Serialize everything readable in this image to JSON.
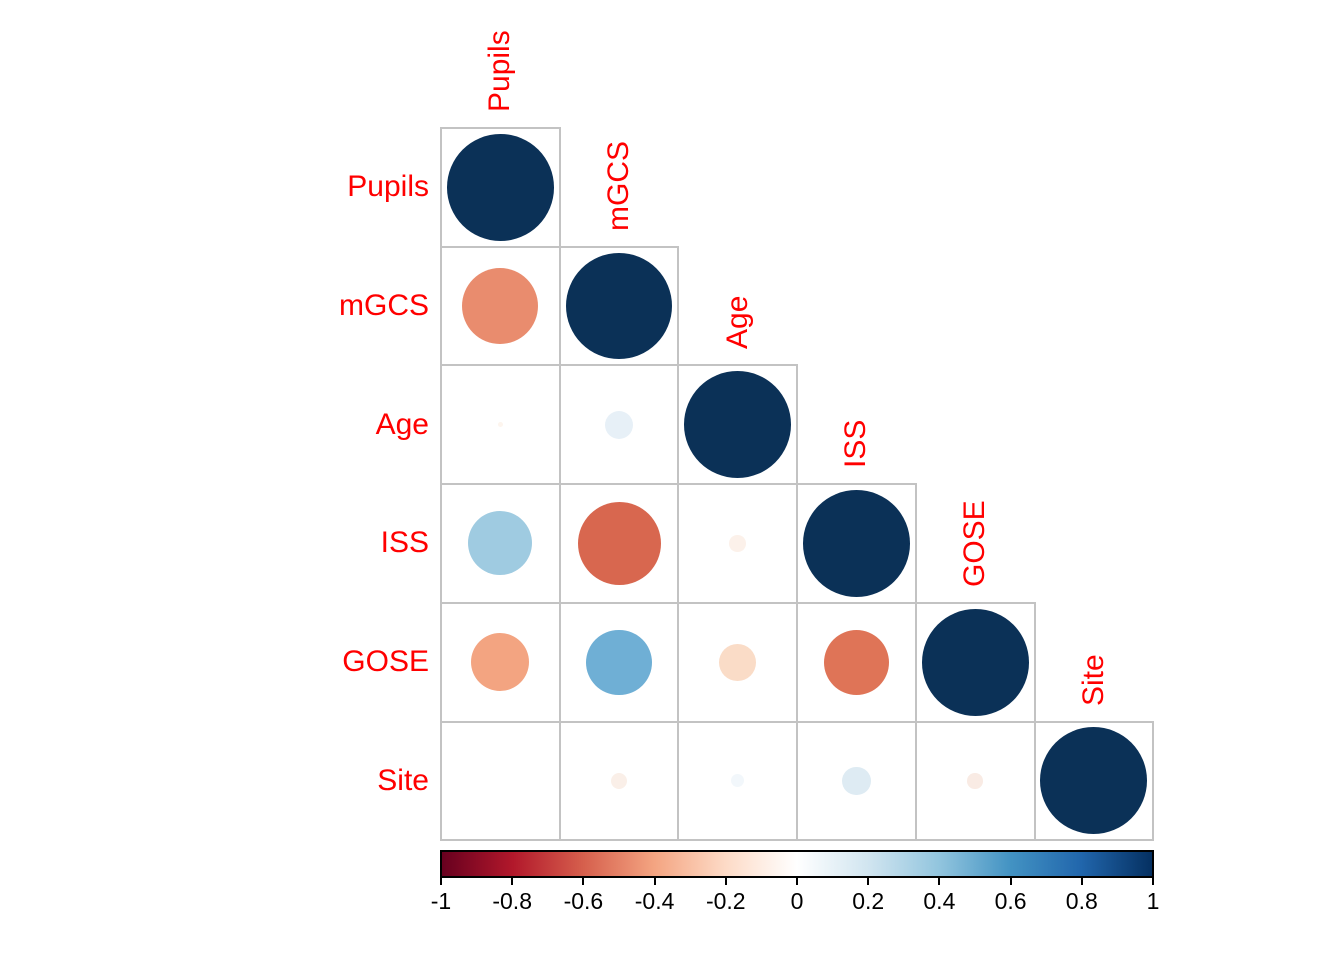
{
  "chart_data": {
    "type": "heatmap",
    "subtype": "correlation-matrix-circle-plot",
    "title": "",
    "matrix_shape": "lower-triangle",
    "variables": [
      "Pupils",
      "mGCS",
      "Age",
      "ISS",
      "GOSE",
      "Site"
    ],
    "correlations": [
      {
        "row": "Pupils",
        "col": "Pupils",
        "value": 1.0,
        "color": "#0B3157",
        "size_ratio": 0.9
      },
      {
        "row": "mGCS",
        "col": "Pupils",
        "value": -0.5,
        "color": "#E98C6E",
        "size_ratio": 0.64
      },
      {
        "row": "mGCS",
        "col": "mGCS",
        "value": 1.0,
        "color": "#0B3157",
        "size_ratio": 0.9
      },
      {
        "row": "Age",
        "col": "Pupils",
        "value": -0.01,
        "color": "#FDF5EE",
        "size_ratio": 0.04
      },
      {
        "row": "Age",
        "col": "mGCS",
        "value": 0.1,
        "color": "#E7F0F7",
        "size_ratio": 0.24
      },
      {
        "row": "Age",
        "col": "Age",
        "value": 1.0,
        "color": "#0B3157",
        "size_ratio": 0.9
      },
      {
        "row": "ISS",
        "col": "Pupils",
        "value": 0.35,
        "color": "#9FCBE1",
        "size_ratio": 0.54
      },
      {
        "row": "ISS",
        "col": "mGCS",
        "value": -0.6,
        "color": "#D8674F",
        "size_ratio": 0.7
      },
      {
        "row": "ISS",
        "col": "Age",
        "value": -0.02,
        "color": "#FCF1EA",
        "size_ratio": 0.14
      },
      {
        "row": "ISS",
        "col": "ISS",
        "value": 1.0,
        "color": "#0B3157",
        "size_ratio": 0.9
      },
      {
        "row": "GOSE",
        "col": "Pupils",
        "value": -0.35,
        "color": "#F3A481",
        "size_ratio": 0.49
      },
      {
        "row": "GOSE",
        "col": "mGCS",
        "value": 0.45,
        "color": "#6FAFD5",
        "size_ratio": 0.55
      },
      {
        "row": "GOSE",
        "col": "Age",
        "value": -0.15,
        "color": "#FADCC7",
        "size_ratio": 0.31
      },
      {
        "row": "GOSE",
        "col": "ISS",
        "value": -0.5,
        "color": "#DF7457",
        "size_ratio": 0.55
      },
      {
        "row": "GOSE",
        "col": "GOSE",
        "value": 1.0,
        "color": "#0B3157",
        "size_ratio": 0.9
      },
      {
        "row": "Site",
        "col": "Pupils",
        "value": 0.0,
        "color": "#FFFFFF",
        "size_ratio": 0.0
      },
      {
        "row": "Site",
        "col": "mGCS",
        "value": -0.03,
        "color": "#FAEFE8",
        "size_ratio": 0.14
      },
      {
        "row": "Site",
        "col": "Age",
        "value": 0.02,
        "color": "#F2F7FB",
        "size_ratio": 0.11
      },
      {
        "row": "Site",
        "col": "ISS",
        "value": 0.1,
        "color": "#DEEBF3",
        "size_ratio": 0.24
      },
      {
        "row": "Site",
        "col": "GOSE",
        "value": -0.03,
        "color": "#F9EBE4",
        "size_ratio": 0.13
      },
      {
        "row": "Site",
        "col": "Site",
        "value": 1.0,
        "color": "#0B3157",
        "size_ratio": 0.9
      }
    ],
    "legend": {
      "position": "bottom",
      "range": [
        -1,
        1
      ],
      "tick_labels": [
        "-1",
        "-0.8",
        "-0.6",
        "-0.4",
        "-0.2",
        "0",
        "0.2",
        "0.4",
        "0.6",
        "0.8",
        "1"
      ],
      "gradient": [
        {
          "pos": 0.0,
          "color": "#67001F"
        },
        {
          "pos": 0.1,
          "color": "#B2182B"
        },
        {
          "pos": 0.2,
          "color": "#D6604D"
        },
        {
          "pos": 0.3,
          "color": "#F4A582"
        },
        {
          "pos": 0.4,
          "color": "#FDDBC7"
        },
        {
          "pos": 0.5,
          "color": "#FFFFFF"
        },
        {
          "pos": 0.6,
          "color": "#D1E5F0"
        },
        {
          "pos": 0.7,
          "color": "#92C5DE"
        },
        {
          "pos": 0.8,
          "color": "#4393C3"
        },
        {
          "pos": 0.9,
          "color": "#2166AC"
        },
        {
          "pos": 1.0,
          "color": "#053061"
        }
      ]
    },
    "style": {
      "variable_label_color": "#FF0000",
      "grid_color": "#C3C3C3",
      "diagonal_color": "#0B3157",
      "legend_tick_color": "#000000",
      "background": "#FFFFFF"
    }
  }
}
